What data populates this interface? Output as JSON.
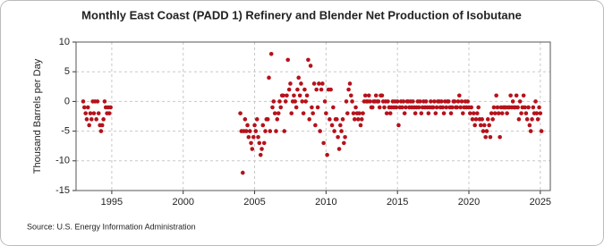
{
  "chart_data": {
    "type": "scatter",
    "title": "Monthly East Coast (PADD 1) Refinery and Blender Net Production of Isobutane",
    "y_label": "Thousand Barrels per Day",
    "source": "Source: U.S. Energy Information Administration",
    "xlim": [
      1992.5,
      2025.7
    ],
    "xticks": [
      1995,
      2000,
      2005,
      2010,
      2015,
      2020,
      2025
    ],
    "ylim": [
      -15,
      10
    ],
    "yticks": [
      -15,
      -10,
      -5,
      0,
      5,
      10
    ],
    "grid": true,
    "series": [
      {
        "name": "Isobutane",
        "color": "#b5121b",
        "x": [
          1993.0,
          1993.08,
          1993.17,
          1993.25,
          1993.33,
          1993.42,
          1993.5,
          1993.58,
          1993.67,
          1993.75,
          1993.83,
          1993.92,
          1994.0,
          1994.08,
          1994.17,
          1994.25,
          1994.33,
          1994.42,
          1994.5,
          1994.58,
          1994.67,
          1994.75,
          1994.83,
          1994.92,
          2004.0,
          2004.08,
          2004.17,
          2004.25,
          2004.33,
          2004.42,
          2004.5,
          2004.58,
          2004.67,
          2004.75,
          2004.83,
          2004.92,
          2005.0,
          2005.08,
          2005.17,
          2005.25,
          2005.33,
          2005.42,
          2005.5,
          2005.58,
          2005.67,
          2005.75,
          2005.83,
          2005.92,
          2006.0,
          2006.08,
          2006.17,
          2006.25,
          2006.33,
          2006.42,
          2006.5,
          2006.58,
          2006.67,
          2006.75,
          2006.83,
          2006.92,
          2007.0,
          2007.08,
          2007.17,
          2007.25,
          2007.33,
          2007.42,
          2007.5,
          2007.58,
          2007.67,
          2007.75,
          2007.83,
          2007.92,
          2008.0,
          2008.08,
          2008.17,
          2008.25,
          2008.33,
          2008.42,
          2008.5,
          2008.58,
          2008.67,
          2008.75,
          2008.83,
          2008.92,
          2009.0,
          2009.08,
          2009.17,
          2009.25,
          2009.33,
          2009.42,
          2009.5,
          2009.58,
          2009.67,
          2009.75,
          2009.83,
          2009.92,
          2010.0,
          2010.08,
          2010.17,
          2010.25,
          2010.33,
          2010.42,
          2010.5,
          2010.58,
          2010.67,
          2010.75,
          2010.83,
          2010.92,
          2011.0,
          2011.08,
          2011.17,
          2011.25,
          2011.33,
          2011.42,
          2011.5,
          2011.58,
          2011.67,
          2011.75,
          2011.83,
          2011.92,
          2012.0,
          2012.08,
          2012.17,
          2012.25,
          2012.33,
          2012.42,
          2012.5,
          2012.58,
          2012.67,
          2012.75,
          2012.83,
          2012.92,
          2013.0,
          2013.08,
          2013.17,
          2013.25,
          2013.33,
          2013.42,
          2013.5,
          2013.58,
          2013.67,
          2013.75,
          2013.83,
          2013.92,
          2014.0,
          2014.08,
          2014.17,
          2014.25,
          2014.33,
          2014.42,
          2014.5,
          2014.58,
          2014.67,
          2014.75,
          2014.83,
          2014.92,
          2015.0,
          2015.08,
          2015.17,
          2015.25,
          2015.33,
          2015.42,
          2015.5,
          2015.58,
          2015.67,
          2015.75,
          2015.83,
          2015.92,
          2016.0,
          2016.08,
          2016.17,
          2016.25,
          2016.33,
          2016.42,
          2016.5,
          2016.58,
          2016.67,
          2016.75,
          2016.83,
          2016.92,
          2017.0,
          2017.08,
          2017.17,
          2017.25,
          2017.33,
          2017.42,
          2017.5,
          2017.58,
          2017.67,
          2017.75,
          2017.83,
          2017.92,
          2018.0,
          2018.08,
          2018.17,
          2018.25,
          2018.33,
          2018.42,
          2018.5,
          2018.58,
          2018.67,
          2018.75,
          2018.83,
          2018.92,
          2019.0,
          2019.08,
          2019.17,
          2019.25,
          2019.33,
          2019.42,
          2019.5,
          2019.58,
          2019.67,
          2019.75,
          2019.83,
          2019.92,
          2020.0,
          2020.08,
          2020.17,
          2020.25,
          2020.33,
          2020.42,
          2020.5,
          2020.58,
          2020.67,
          2020.75,
          2020.83,
          2020.92,
          2021.0,
          2021.08,
          2021.17,
          2021.25,
          2021.33,
          2021.42,
          2021.5,
          2021.58,
          2021.67,
          2021.75,
          2021.83,
          2021.92,
          2022.0,
          2022.08,
          2022.17,
          2022.25,
          2022.33,
          2022.42,
          2022.5,
          2022.58,
          2022.67,
          2022.75,
          2022.83,
          2022.92,
          2023.0,
          2023.08,
          2023.17,
          2023.25,
          2023.33,
          2023.42,
          2023.5,
          2023.58,
          2023.67,
          2023.75,
          2023.83,
          2023.92,
          2024.0,
          2024.08,
          2024.17,
          2024.25,
          2024.33,
          2024.42,
          2024.5,
          2024.58,
          2024.67,
          2024.75,
          2024.83,
          2024.92,
          2025.0,
          2025.08
        ],
        "values": [
          0,
          -1,
          -2,
          -3,
          -1,
          -4,
          -2,
          -3,
          0,
          -2,
          0,
          -3,
          0,
          -2,
          -4,
          -5,
          -4,
          -3,
          0,
          -1,
          -2,
          -1,
          -2,
          -1,
          -2,
          -5,
          -12,
          -5,
          -3,
          -5,
          -4,
          -6,
          -5,
          -7,
          -8,
          -6,
          -4,
          -5,
          -3,
          -6,
          -7,
          -9,
          -8,
          -4,
          -7,
          -5,
          -3,
          -3,
          4,
          -5,
          8,
          -1,
          0,
          -2,
          -5,
          -3,
          -2,
          0,
          -1,
          1,
          1,
          -5,
          0,
          1,
          7,
          2,
          3,
          -2,
          0,
          1,
          0,
          -1,
          2,
          4,
          1,
          3,
          0,
          -2,
          2,
          0,
          1,
          7,
          -3,
          6,
          -1,
          -2,
          3,
          -4,
          2,
          -1,
          3,
          -5,
          2,
          3,
          -7,
          0,
          -2,
          -9,
          2,
          -3,
          2,
          -4,
          -1,
          -5,
          -3,
          -3,
          -6,
          -8,
          -4,
          -5,
          -3,
          -7,
          -6,
          0,
          -2,
          2,
          3,
          1,
          0,
          -2,
          -3,
          -1,
          -2,
          -3,
          -2,
          -4,
          -3,
          -2,
          0,
          1,
          0,
          0,
          1,
          0,
          -1,
          -1,
          0,
          0,
          1,
          0,
          0,
          -1,
          1,
          1,
          0,
          -1,
          0,
          -2,
          0,
          -1,
          -2,
          -1,
          0,
          -1,
          0,
          -1,
          0,
          -4,
          -1,
          0,
          -1,
          0,
          -2,
          -1,
          0,
          0,
          -1,
          0,
          -1,
          0,
          -1,
          -2,
          -1,
          0,
          -1,
          0,
          -2,
          -1,
          0,
          -1,
          0,
          -1,
          -2,
          -1,
          0,
          -1,
          -1,
          0,
          -2,
          -1,
          0,
          0,
          -1,
          0,
          -1,
          -2,
          0,
          -1,
          0,
          0,
          -1,
          -2,
          -1,
          0,
          0,
          -1,
          -1,
          0,
          1,
          -1,
          0,
          -2,
          -1,
          0,
          -1,
          0,
          -1,
          -2,
          -1,
          -3,
          -2,
          -4,
          -3,
          -2,
          -1,
          -3,
          -4,
          -3,
          -5,
          -4,
          -6,
          -5,
          -3,
          -4,
          -6,
          -2,
          -3,
          -1,
          -2,
          1,
          -1,
          -2,
          -6,
          -1,
          -2,
          -1,
          -1,
          -1,
          -2,
          -1,
          -1,
          1,
          -1,
          0,
          -1,
          -1,
          1,
          -1,
          -3,
          0,
          -2,
          -1,
          1,
          -1,
          -2,
          -3,
          -1,
          -4,
          -5,
          -3,
          -1,
          -2,
          0,
          -2,
          -3,
          -1,
          -2,
          -5
        ]
      }
    ]
  }
}
